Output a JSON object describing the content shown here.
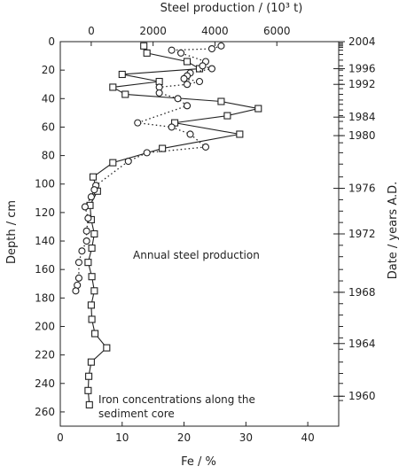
{
  "chart_data": {
    "type": "line",
    "top_axis_label": "Steel production / (10³ t)",
    "x_bottom_label": "Fe / %",
    "y_left_label": "Depth / cm",
    "y_right_label": "Date / years A.D.",
    "x_bottom_range": [
      0,
      45
    ],
    "x_bottom_ticks": [
      0,
      10,
      20,
      30,
      40
    ],
    "x_top_range": [
      -1000,
      8000
    ],
    "x_top_ticks": [
      0,
      2000,
      4000,
      6000
    ],
    "y_range": [
      270,
      0
    ],
    "y_ticks": [
      0,
      20,
      40,
      60,
      80,
      100,
      120,
      140,
      160,
      180,
      200,
      220,
      240,
      260
    ],
    "date_labels": [
      {
        "year": "2004",
        "depth": 0
      },
      {
        "year": "1996",
        "depth": 19
      },
      {
        "year": "1992",
        "depth": 30
      },
      {
        "year": "1984",
        "depth": 53
      },
      {
        "year": "1980",
        "depth": 66
      },
      {
        "year": "1976",
        "depth": 103
      },
      {
        "year": "1972",
        "depth": 135
      },
      {
        "year": "1968",
        "depth": 176
      },
      {
        "year": "1964",
        "depth": 212
      },
      {
        "year": "1960",
        "depth": 249
      }
    ],
    "date_ticks_depth": [
      0,
      1,
      2,
      3,
      4,
      6,
      9,
      13,
      17,
      20,
      24,
      27,
      30,
      33,
      37,
      41,
      44,
      48,
      52,
      56,
      61,
      66,
      71,
      78,
      86,
      95,
      103,
      111,
      119,
      127,
      135,
      143,
      151,
      160,
      168,
      176,
      184,
      192,
      200,
      208,
      216,
      225,
      233,
      240,
      249,
      252
    ],
    "series": [
      {
        "name": "Iron concentrations along the sediment core",
        "marker": "square",
        "line": "solid",
        "axis": "bottom",
        "points": [
          [
            13.5,
            3
          ],
          [
            14,
            8
          ],
          [
            20.5,
            14
          ],
          [
            22.5,
            19
          ],
          [
            10,
            23
          ],
          [
            16,
            28
          ],
          [
            8.5,
            32
          ],
          [
            10.5,
            37
          ],
          [
            26,
            42
          ],
          [
            32,
            47
          ],
          [
            27,
            52
          ],
          [
            18.5,
            57
          ],
          [
            29,
            65
          ],
          [
            16.5,
            75
          ],
          [
            8.5,
            85
          ],
          [
            5.3,
            95
          ],
          [
            6,
            105
          ],
          [
            4.8,
            115
          ],
          [
            5,
            125
          ],
          [
            5.5,
            135
          ],
          [
            5.1,
            145
          ],
          [
            4.5,
            155
          ],
          [
            5.1,
            165
          ],
          [
            5.5,
            175
          ],
          [
            5,
            185
          ],
          [
            5.1,
            195
          ],
          [
            5.6,
            205
          ],
          [
            7.5,
            215
          ],
          [
            5,
            225
          ],
          [
            4.6,
            235
          ],
          [
            4.5,
            245
          ],
          [
            4.7,
            255
          ]
        ]
      },
      {
        "name": "Annual steel production",
        "marker": "circle",
        "line": "dotted",
        "axis": "top",
        "points": [
          [
            4200,
            3
          ],
          [
            3900,
            5
          ],
          [
            2600,
            6
          ],
          [
            2900,
            8
          ],
          [
            3700,
            14
          ],
          [
            3600,
            17
          ],
          [
            3900,
            19
          ],
          [
            3200,
            22
          ],
          [
            3100,
            24
          ],
          [
            3000,
            26
          ],
          [
            3500,
            28
          ],
          [
            3100,
            30
          ],
          [
            2200,
            32
          ],
          [
            2200,
            36
          ],
          [
            2800,
            40
          ],
          [
            3100,
            45
          ],
          [
            1500,
            57
          ],
          [
            2600,
            60
          ],
          [
            3200,
            65
          ],
          [
            3700,
            74
          ],
          [
            1800,
            78
          ],
          [
            1200,
            84
          ],
          [
            150,
            101
          ],
          [
            100,
            104
          ],
          [
            0,
            109
          ],
          [
            -200,
            116
          ],
          [
            -100,
            124
          ],
          [
            -150,
            133
          ],
          [
            -150,
            140
          ],
          [
            -300,
            147
          ],
          [
            -400,
            155
          ],
          [
            -400,
            166
          ],
          [
            -450,
            171
          ],
          [
            -500,
            175
          ]
        ]
      }
    ],
    "annotations": [
      {
        "text": "Annual steel production"
      },
      {
        "text": "Iron concentrations along the"
      },
      {
        "text": "sediment core"
      }
    ]
  }
}
